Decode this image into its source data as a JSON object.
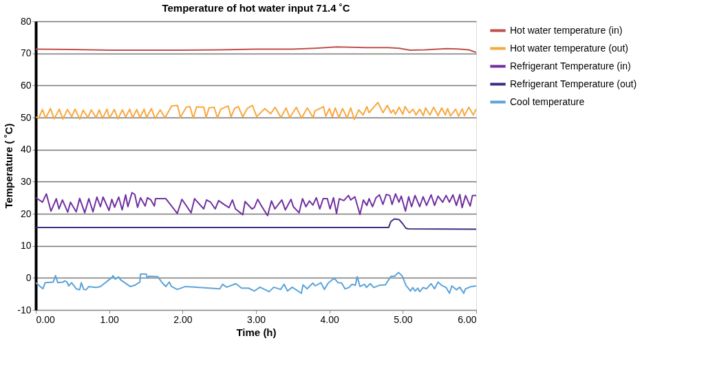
{
  "chart_data": {
    "type": "line",
    "title": "Temperature of hot water input 71.4 ˚C",
    "xlabel": "Time (h)",
    "ylabel": "Temperature ( ˚C)",
    "xlim": [
      0,
      6
    ],
    "xticks": [
      {
        "value": 0,
        "label": "0.00"
      },
      {
        "value": 1,
        "label": "1.00"
      },
      {
        "value": 2,
        "label": "2.00"
      },
      {
        "value": 3,
        "label": "3.00"
      },
      {
        "value": 4,
        "label": "4.00"
      },
      {
        "value": 5,
        "label": "5.00"
      },
      {
        "value": 6,
        "label": "6.00"
      }
    ],
    "ylim": [
      -10,
      80
    ],
    "yticks": [
      -10,
      0,
      10,
      20,
      30,
      40,
      50,
      60,
      70,
      80
    ],
    "grid": "y",
    "legend": "right",
    "marker": "none",
    "line_style": "solid",
    "series": [
      {
        "name": "Hot water temperature (in)",
        "color": "#c0504d",
        "x": [
          0,
          0.5,
          1.0,
          1.5,
          2.0,
          2.5,
          3.0,
          3.5,
          3.8,
          4.1,
          4.3,
          4.5,
          4.8,
          4.95,
          5.1,
          5.3,
          5.6,
          5.75,
          5.9,
          6.0
        ],
        "values": [
          71.3,
          71.2,
          71.0,
          71.0,
          71.0,
          71.1,
          71.3,
          71.3,
          71.6,
          72.0,
          71.9,
          71.8,
          71.8,
          71.6,
          71.0,
          71.1,
          71.5,
          71.4,
          71.1,
          70.3
        ]
      },
      {
        "name": "Hot water temperature (out)",
        "color": "#f9a73e",
        "x": [
          0,
          0.04,
          0.09,
          0.135,
          0.2,
          0.25,
          0.32,
          0.37,
          0.43,
          0.49,
          0.535,
          0.6,
          0.645,
          0.71,
          0.755,
          0.82,
          0.865,
          0.91,
          0.97,
          1.005,
          1.07,
          1.12,
          1.18,
          1.225,
          1.28,
          1.32,
          1.375,
          1.42,
          1.475,
          1.51,
          1.575,
          1.625,
          1.695,
          1.76,
          1.85,
          1.93,
          1.97,
          2.05,
          2.1,
          2.145,
          2.19,
          2.29,
          2.32,
          2.36,
          2.43,
          2.475,
          2.52,
          2.62,
          2.66,
          2.71,
          2.76,
          2.82,
          2.88,
          2.95,
          3.01,
          3.12,
          3.2,
          3.26,
          3.34,
          3.41,
          3.46,
          3.55,
          3.62,
          3.7,
          3.78,
          3.8,
          3.92,
          3.95,
          4.0,
          4.04,
          4.08,
          4.13,
          4.18,
          4.24,
          4.29,
          4.34,
          4.4,
          4.46,
          4.51,
          4.54,
          4.66,
          4.73,
          4.79,
          4.84,
          4.87,
          4.9,
          4.95,
          5.0,
          5.03,
          5.09,
          5.14,
          5.18,
          5.23,
          5.28,
          5.31,
          5.37,
          5.42,
          5.48,
          5.53,
          5.58,
          5.61,
          5.65,
          5.72,
          5.76,
          5.81,
          5.84,
          5.9,
          5.96,
          6.0
        ],
        "values": [
          50.2,
          49.8,
          52.5,
          49.8,
          52.8,
          49.6,
          52.6,
          49.5,
          52.5,
          50.3,
          52.6,
          49.5,
          52.3,
          50.0,
          52.4,
          50.0,
          52.4,
          49.7,
          52.6,
          49.8,
          52.5,
          49.6,
          52.4,
          50.2,
          52.6,
          49.9,
          52.5,
          50.0,
          52.6,
          50.0,
          52.8,
          49.7,
          52.4,
          49.9,
          53.6,
          53.8,
          50.0,
          53.2,
          53.4,
          49.8,
          53.3,
          53.2,
          50.0,
          53.0,
          53.2,
          49.9,
          52.6,
          53.6,
          50.2,
          52.9,
          53.4,
          50.2,
          52.8,
          53.8,
          50.3,
          52.8,
          51.2,
          53.2,
          50.0,
          53.0,
          50.0,
          53.2,
          49.8,
          53.0,
          49.9,
          52.0,
          53.4,
          50.4,
          52.8,
          50.2,
          53.0,
          50.0,
          52.8,
          49.8,
          53.0,
          49.4,
          52.4,
          50.8,
          53.4,
          51.5,
          54.7,
          51.5,
          53.8,
          51.4,
          52.4,
          51.0,
          53.2,
          51.0,
          53.4,
          51.4,
          52.6,
          50.8,
          52.6,
          50.6,
          53.0,
          50.8,
          53.2,
          50.6,
          53.0,
          50.8,
          52.8,
          50.5,
          52.6,
          50.4,
          52.7,
          50.6,
          53.2,
          50.8,
          52.7
        ]
      },
      {
        "name": "Refrigerant Temperature (in)",
        "color": "#7030a0",
        "x": [
          0,
          0.091,
          0.144,
          0.207,
          0.279,
          0.316,
          0.363,
          0.435,
          0.473,
          0.551,
          0.598,
          0.667,
          0.723,
          0.779,
          0.833,
          0.88,
          0.917,
          0.998,
          1.036,
          1.074,
          1.13,
          1.177,
          1.224,
          1.255,
          1.311,
          1.349,
          1.387,
          1.427,
          1.49,
          1.521,
          1.568,
          1.615,
          1.631,
          1.772,
          1.928,
          1.991,
          2.116,
          2.163,
          2.288,
          2.326,
          2.382,
          2.444,
          2.491,
          2.57,
          2.632,
          2.679,
          2.72,
          2.82,
          2.851,
          2.945,
          2.977,
          3.023,
          3.07,
          3.158,
          3.211,
          3.258,
          3.352,
          3.399,
          3.477,
          3.509,
          3.587,
          3.634,
          3.681,
          3.728,
          3.775,
          3.822,
          3.869,
          3.915,
          3.972,
          4.009,
          4.056,
          4.097,
          4.135,
          4.197,
          4.26,
          4.291,
          4.347,
          4.416,
          4.463,
          4.51,
          4.541,
          4.588,
          4.635,
          4.682,
          4.729,
          4.775,
          4.822,
          4.854,
          4.901,
          4.948,
          4.979,
          5.036,
          5.08,
          5.12,
          5.167,
          5.23,
          5.277,
          5.324,
          5.386,
          5.433,
          5.48,
          5.543,
          5.59,
          5.636,
          5.683,
          5.73,
          5.777,
          5.808,
          5.855,
          5.918,
          5.949,
          6.0
        ],
        "values": [
          25.0,
          23.6,
          26.2,
          20.8,
          24.7,
          21.5,
          24.3,
          20.5,
          23.6,
          20.6,
          24.8,
          20.3,
          24.7,
          20.6,
          25.2,
          22.2,
          25.2,
          21.0,
          24.5,
          22.0,
          25.2,
          21.2,
          25.9,
          22.2,
          26.6,
          26.0,
          22.0,
          25.0,
          22.4,
          25.0,
          24.3,
          22.4,
          24.7,
          24.7,
          20.1,
          24.5,
          20.3,
          24.7,
          21.5,
          24.3,
          23.6,
          21.5,
          24.1,
          22.8,
          21.9,
          24.3,
          21.5,
          19.7,
          23.8,
          21.5,
          21.9,
          24.5,
          22.6,
          19.4,
          24.0,
          21.5,
          24.3,
          21.2,
          24.5,
          22.2,
          20.3,
          24.7,
          22.2,
          24.0,
          22.7,
          25.0,
          21.5,
          24.7,
          24.7,
          21.5,
          25.0,
          20.1,
          24.7,
          24.1,
          25.7,
          24.3,
          25.3,
          19.8,
          24.3,
          22.6,
          24.7,
          22.2,
          25.0,
          25.9,
          22.9,
          26.0,
          25.7,
          22.9,
          26.2,
          23.6,
          25.5,
          20.8,
          25.3,
          22.2,
          25.7,
          22.2,
          25.3,
          22.6,
          25.9,
          22.6,
          25.5,
          23.6,
          25.7,
          23.6,
          25.9,
          22.6,
          26.0,
          21.9,
          25.7,
          22.4,
          25.7,
          25.7
        ]
      },
      {
        "name": "Refrigerant Temperature (out)",
        "color": "#3f2d7f",
        "x": [
          0,
          4.807,
          4.838,
          4.885,
          4.948,
          4.995,
          5.042,
          5.073,
          6.0
        ],
        "values": [
          15.7,
          15.7,
          17.6,
          18.4,
          18.2,
          17.0,
          15.5,
          15.3,
          15.2
        ]
      },
      {
        "name": "Cool temperature",
        "color": "#5ba3d9",
        "x": [
          0,
          0.097,
          0.128,
          0.238,
          0.269,
          0.3,
          0.372,
          0.394,
          0.426,
          0.448,
          0.488,
          0.551,
          0.598,
          0.62,
          0.654,
          0.685,
          0.723,
          0.817,
          0.88,
          1.036,
          1.052,
          1.083,
          1.13,
          1.155,
          1.286,
          1.349,
          1.418,
          1.427,
          1.505,
          1.521,
          1.537,
          1.662,
          1.725,
          1.772,
          1.818,
          1.85,
          1.928,
          2.038,
          2.163,
          2.507,
          2.545,
          2.601,
          2.726,
          2.804,
          2.898,
          2.977,
          3.054,
          3.18,
          3.242,
          3.336,
          3.383,
          3.43,
          3.493,
          3.618,
          3.64,
          3.697,
          3.775,
          3.806,
          3.885,
          3.931,
          3.985,
          4.066,
          4.119,
          4.166,
          4.213,
          4.267,
          4.307,
          4.354,
          4.379,
          4.417,
          4.479,
          4.504,
          4.557,
          4.604,
          4.682,
          4.761,
          4.839,
          4.886,
          4.942,
          4.995,
          5.042,
          5.105,
          5.136,
          5.167,
          5.205,
          5.23,
          5.277,
          5.324,
          5.386,
          5.433,
          5.48,
          5.527,
          5.59,
          5.636,
          5.668,
          5.73,
          5.777,
          5.83,
          5.855,
          5.933,
          6.0
        ],
        "values": [
          -1.5,
          -3.4,
          -1.5,
          -1.3,
          0.7,
          -1.5,
          -1.3,
          -0.9,
          -1.3,
          -2.5,
          -1.5,
          -3.4,
          -3.7,
          -1.5,
          -3.6,
          -3.7,
          -2.7,
          -3.0,
          -2.7,
          0.1,
          0.7,
          -0.4,
          0.3,
          -0.6,
          -2.7,
          -2.3,
          -1.3,
          1.2,
          1.2,
          -0.1,
          0.5,
          0.4,
          -1.6,
          -2.7,
          -1.3,
          -2.7,
          -3.6,
          -2.7,
          -2.9,
          -3.4,
          -2.0,
          -2.9,
          -1.8,
          -3.2,
          -3.2,
          -4.1,
          -2.9,
          -4.3,
          -2.9,
          -3.6,
          -2.0,
          -4.1,
          -2.9,
          -4.8,
          -2.2,
          -3.4,
          -1.6,
          -2.5,
          -1.5,
          -3.6,
          -1.6,
          -0.1,
          -1.5,
          -1.6,
          -3.4,
          -3.0,
          -2.0,
          -2.3,
          0.4,
          -2.7,
          -2.0,
          -3.0,
          -1.8,
          -3.0,
          -2.3,
          -2.2,
          0.5,
          0.5,
          1.7,
          0.5,
          -2.3,
          -4.1,
          -3.0,
          -4.1,
          -3.2,
          -4.3,
          -3.0,
          -3.4,
          -1.8,
          -3.4,
          -1.3,
          -2.3,
          -3.0,
          -4.8,
          -2.5,
          -3.7,
          -2.9,
          -4.8,
          -3.4,
          -2.7,
          -2.5
        ]
      }
    ]
  }
}
